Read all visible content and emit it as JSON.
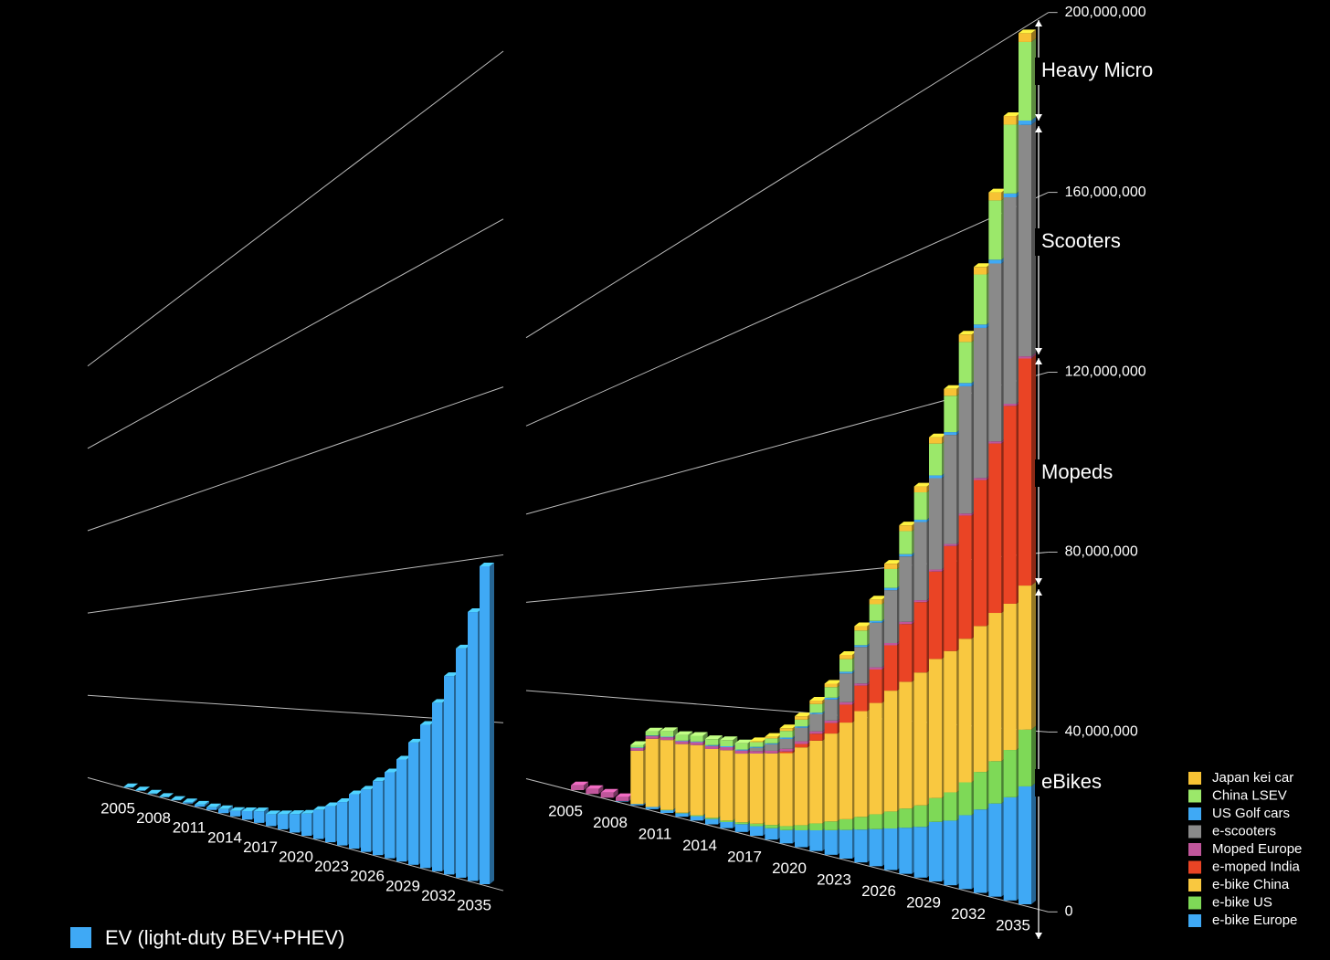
{
  "chart_data": [
    {
      "type": "bar3d",
      "categories": [
        "2005",
        null,
        null,
        "2008",
        null,
        null,
        "2011",
        null,
        null,
        "2014",
        null,
        null,
        "2017",
        null,
        null,
        "2020",
        null,
        null,
        "2023",
        null,
        null,
        "2026",
        null,
        null,
        "2029",
        null,
        null,
        "2032",
        null,
        null,
        "2035"
      ],
      "series": [
        {
          "name": "EV (light-duty BEV+PHEV)",
          "color": "#3fa9f5",
          "values": [
            100000,
            100000,
            100000,
            100000,
            200000,
            500000,
            800000,
            1000000,
            1500000,
            2000000,
            3000000,
            4000000,
            4000000,
            5000000,
            6000000,
            7000000,
            9000000,
            11000000,
            13000000,
            16000000,
            18000000,
            21000000,
            24000000,
            28000000,
            33000000,
            38000000,
            44000000,
            51000000,
            58000000,
            67000000,
            78000000
          ]
        }
      ],
      "ylim": [
        0,
        200000000
      ],
      "yticks": [
        0,
        40000000,
        80000000,
        120000000,
        160000000,
        200000000
      ],
      "grid": true
    },
    {
      "type": "stacked3d",
      "categories": [
        "2005",
        null,
        null,
        "2008",
        null,
        null,
        "2011",
        null,
        null,
        "2014",
        null,
        null,
        "2017",
        null,
        null,
        "2020",
        null,
        null,
        "2023",
        null,
        null,
        "2026",
        null,
        null,
        "2029",
        null,
        null,
        "2032",
        null,
        null,
        "2035"
      ],
      "series": [
        {
          "name": "e-bike Europe",
          "color": "#3fa9f5",
          "values": [
            0,
            0,
            0,
            200000,
            500000,
            800000,
            1000000,
            1200000,
            1500000,
            1800000,
            2000000,
            2500000,
            3000000,
            3500000,
            4000000,
            5000000,
            6000000,
            7000000,
            8000000,
            9000000,
            10000000,
            11000000,
            12000000,
            13000000,
            15000000,
            16000000,
            18000000,
            20000000,
            22000000,
            24000000,
            27000000
          ]
        },
        {
          "name": "e-bike US",
          "color": "#7ed957",
          "values": [
            0,
            0,
            0,
            0,
            0,
            0,
            100000,
            200000,
            300000,
            400000,
            500000,
            600000,
            800000,
            1000000,
            1200000,
            1500000,
            2000000,
            2500000,
            3000000,
            3500000,
            4000000,
            4500000,
            5000000,
            5500000,
            6000000,
            7000000,
            8000000,
            9000000,
            10000000,
            11000000,
            13000000
          ]
        },
        {
          "name": "e-bike China",
          "color": "#f9c840",
          "values": [
            0,
            0,
            0,
            0,
            20000000,
            25000000,
            25000000,
            24000000,
            24000000,
            23000000,
            23000000,
            22000000,
            22000000,
            22000000,
            22000000,
            23000000,
            24000000,
            25000000,
            27000000,
            29000000,
            30000000,
            32000000,
            33000000,
            34000000,
            35000000,
            35000000,
            35000000,
            35000000,
            35000000,
            34000000,
            33000000
          ]
        },
        {
          "name": "e-moped India",
          "color": "#ea4425",
          "values": [
            0,
            0,
            0,
            0,
            0,
            0,
            0,
            0,
            0,
            0,
            0,
            0,
            0,
            0,
            500000,
            1000000,
            2000000,
            3000000,
            5000000,
            7000000,
            9000000,
            12000000,
            15000000,
            18000000,
            22000000,
            26000000,
            30000000,
            35000000,
            40000000,
            46000000,
            52000000
          ]
        },
        {
          "name": " Moped Europe",
          "color": "#c0569b",
          "values": [
            2000000,
            2000000,
            2000000,
            1500000,
            1000000,
            1000000,
            1000000,
            1000000,
            1000000,
            1000000,
            1000000,
            1000000,
            800000,
            800000,
            800000,
            800000,
            700000,
            700000,
            700000,
            600000,
            600000,
            600000,
            600000,
            500000,
            500000,
            500000,
            500000,
            500000,
            500000,
            500000,
            500000
          ]
        },
        {
          "name": "e-scooters",
          "color": "#8a8a8a",
          "values": [
            0,
            0,
            0,
            0,
            0,
            0,
            0,
            0,
            0,
            0,
            0,
            0,
            1000000,
            2000000,
            3000000,
            4000000,
            5000000,
            6000000,
            8000000,
            10000000,
            12000000,
            14000000,
            17000000,
            20000000,
            23000000,
            27000000,
            31000000,
            36000000,
            42000000,
            48000000,
            53000000
          ]
        },
        {
          "name": "US Golf cars",
          "color": "#3fa9f5",
          "values": [
            0,
            0,
            0,
            0,
            200000,
            200000,
            200000,
            200000,
            200000,
            300000,
            300000,
            300000,
            300000,
            300000,
            400000,
            400000,
            400000,
            500000,
            500000,
            500000,
            500000,
            600000,
            600000,
            600000,
            700000,
            700000,
            800000,
            800000,
            900000,
            900000,
            1000000
          ]
        },
        {
          "name": "China LSEV",
          "color": "#9be86a",
          "values": [
            0,
            0,
            0,
            0,
            1000000,
            1500000,
            2000000,
            2000000,
            2000000,
            2000000,
            2000000,
            2000000,
            1500000,
            1500000,
            2000000,
            2000000,
            2500000,
            3000000,
            3500000,
            4000000,
            4500000,
            5000000,
            6000000,
            7000000,
            8000000,
            9000000,
            10000000,
            12000000,
            14000000,
            16000000,
            18000000
          ]
        },
        {
          "name": "Japan kei car",
          "color": "#f7c234",
          "values": [
            0,
            0,
            0,
            0,
            0,
            0,
            0,
            0,
            0,
            0,
            0,
            0,
            300000,
            500000,
            800000,
            1000000,
            1000000,
            1000000,
            1200000,
            1200000,
            1300000,
            1400000,
            1500000,
            1500000,
            1600000,
            1700000,
            1800000,
            1800000,
            1900000,
            2000000,
            2000000
          ]
        }
      ],
      "ylim": [
        0,
        200000000
      ],
      "yticks": [
        0,
        {
          "value": 40000000,
          "label": "40,000,000"
        },
        {
          "value": 80000000,
          "label": "80,000,000"
        },
        {
          "value": 120000000,
          "label": "120,000,000"
        },
        {
          "value": 160000000,
          "label": "160,000,000"
        },
        {
          "value": 200000000,
          "label": "200,000,000"
        }
      ],
      "grid": true,
      "annotations": [
        "Heavy Micro",
        "Scooters",
        "Mopeds",
        "eBikes"
      ]
    }
  ]
}
